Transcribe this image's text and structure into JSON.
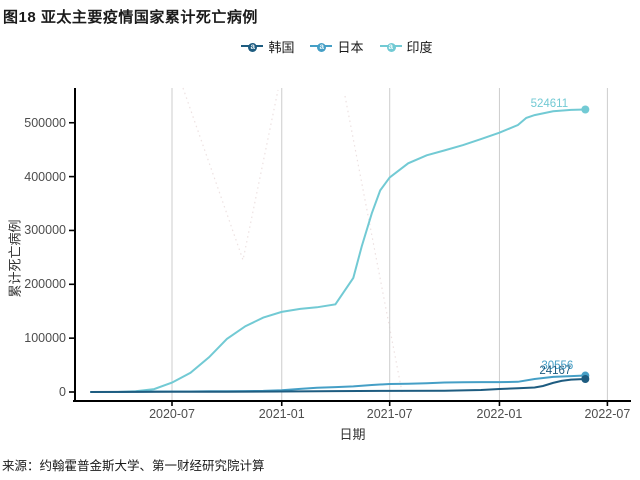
{
  "title": "图18 亚太主要疫情国家累计死亡病例",
  "source": "来源：约翰霍普金斯大学、第一财经研究院计算",
  "colors": {
    "korea": "#1e5c80",
    "japan": "#459fc6",
    "india": "#72cad4",
    "grid": "#cdcdcd",
    "axis": "#000000",
    "tick_text": "#4d4d4d",
    "watermark": "#e8d9d9"
  },
  "chart_data": {
    "type": "line",
    "title": "图18 亚太主要疫情国家累计死亡病例",
    "xlabel": "日期",
    "ylabel": "累计死亡病例",
    "x_ticks": [
      "2020-07",
      "2021-01",
      "2021-07",
      "2022-01",
      "2022-07"
    ],
    "y_ticks": [
      0,
      100000,
      200000,
      300000,
      400000,
      500000
    ],
    "ylim": [
      0,
      560000
    ],
    "grid": "vertical-only",
    "legend_position": "top-center",
    "series": [
      {
        "name": "韩国",
        "color": "#1e5c80",
        "end_label": "24167",
        "points": [
          [
            "2020-02-15",
            0
          ],
          [
            "2020-05-01",
            247
          ],
          [
            "2020-07-01",
            282
          ],
          [
            "2020-10-01",
            413
          ],
          [
            "2021-01-01",
            917
          ],
          [
            "2021-04-01",
            1744
          ],
          [
            "2021-07-01",
            2020
          ],
          [
            "2021-10-01",
            2504
          ],
          [
            "2021-12-01",
            3658
          ],
          [
            "2022-01-01",
            5625
          ],
          [
            "2022-02-01",
            6812
          ],
          [
            "2022-03-01",
            8394
          ],
          [
            "2022-03-15",
            11052
          ],
          [
            "2022-04-01",
            16929
          ],
          [
            "2022-04-15",
            20616
          ],
          [
            "2022-05-01",
            22958
          ],
          [
            "2022-05-25",
            24167
          ]
        ]
      },
      {
        "name": "日本",
        "color": "#459fc6",
        "end_label": "30556",
        "points": [
          [
            "2020-02-15",
            0
          ],
          [
            "2020-04-01",
            57
          ],
          [
            "2020-05-01",
            415
          ],
          [
            "2020-06-01",
            892
          ],
          [
            "2020-07-01",
            976
          ],
          [
            "2020-08-01",
            1011
          ],
          [
            "2020-09-01",
            1296
          ],
          [
            "2020-10-01",
            1571
          ],
          [
            "2020-11-01",
            1755
          ],
          [
            "2020-12-01",
            2120
          ],
          [
            "2021-01-01",
            3414
          ],
          [
            "2021-02-01",
            5833
          ],
          [
            "2021-03-01",
            7860
          ],
          [
            "2021-04-01",
            9155
          ],
          [
            "2021-05-01",
            10351
          ],
          [
            "2021-06-01",
            13072
          ],
          [
            "2021-07-01",
            14778
          ],
          [
            "2021-08-01",
            15199
          ],
          [
            "2021-09-01",
            16180
          ],
          [
            "2021-10-01",
            17653
          ],
          [
            "2021-11-01",
            18278
          ],
          [
            "2021-12-01",
            18370
          ],
          [
            "2022-01-01",
            18393
          ],
          [
            "2022-02-01",
            18905
          ],
          [
            "2022-03-01",
            24219
          ],
          [
            "2022-04-01",
            27968
          ],
          [
            "2022-05-01",
            29520
          ],
          [
            "2022-05-25",
            30556
          ]
        ]
      },
      {
        "name": "印度",
        "color": "#72cad4",
        "end_label": "524611",
        "points": [
          [
            "2020-02-15",
            0
          ],
          [
            "2020-04-01",
            35
          ],
          [
            "2020-05-01",
            1323
          ],
          [
            "2020-06-01",
            5394
          ],
          [
            "2020-07-01",
            17400
          ],
          [
            "2020-08-01",
            35747
          ],
          [
            "2020-09-01",
            64469
          ],
          [
            "2020-10-01",
            98678
          ],
          [
            "2020-11-01",
            122111
          ],
          [
            "2020-12-01",
            138122
          ],
          [
            "2021-01-01",
            148738
          ],
          [
            "2021-02-01",
            154392
          ],
          [
            "2021-03-01",
            157248
          ],
          [
            "2021-04-01",
            162927
          ],
          [
            "2021-05-01",
            211853
          ],
          [
            "2021-05-15",
            270284
          ],
          [
            "2021-06-01",
            331895
          ],
          [
            "2021-06-15",
            374305
          ],
          [
            "2021-07-01",
            398454
          ],
          [
            "2021-08-01",
            424773
          ],
          [
            "2021-09-01",
            439529
          ],
          [
            "2021-10-01",
            448605
          ],
          [
            "2021-11-01",
            458437
          ],
          [
            "2021-12-01",
            469724
          ],
          [
            "2022-01-01",
            481486
          ],
          [
            "2022-02-01",
            495752
          ],
          [
            "2022-02-15",
            509011
          ],
          [
            "2022-03-01",
            514246
          ],
          [
            "2022-04-01",
            521345
          ],
          [
            "2022-05-01",
            523889
          ],
          [
            "2022-05-25",
            524611
          ]
        ]
      }
    ]
  }
}
